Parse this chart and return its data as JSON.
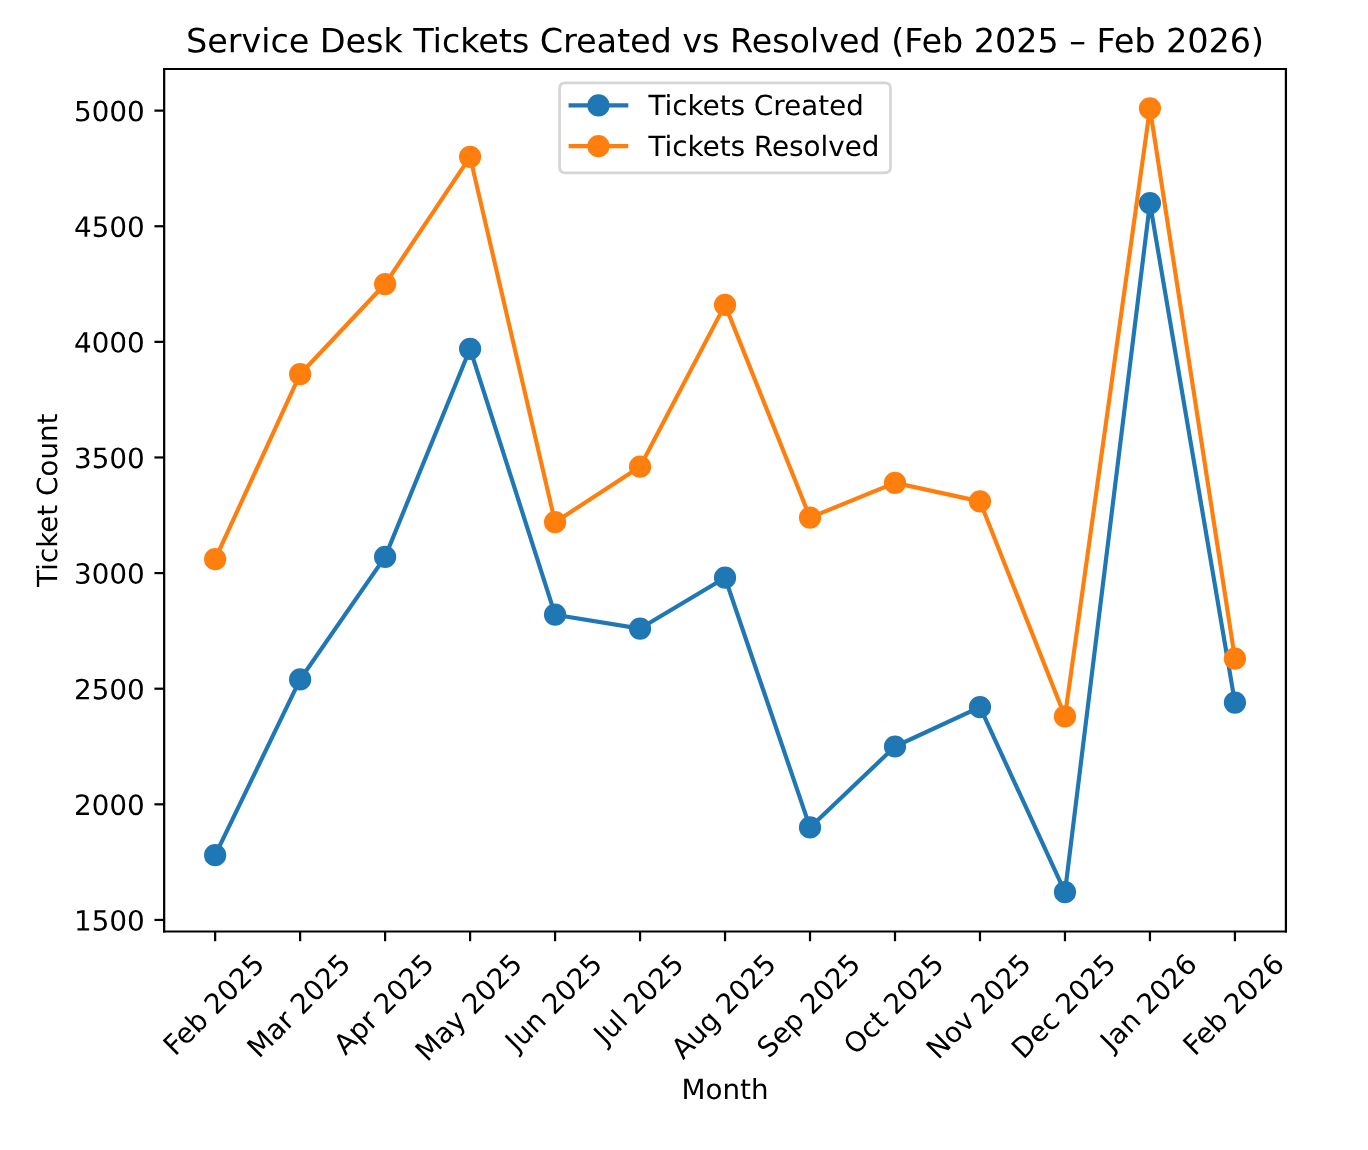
{
  "chart_data": {
    "type": "line",
    "title": "Service Desk Tickets Created vs Resolved (Feb 2025 – Feb 2026)",
    "xlabel": "Month",
    "ylabel": "Ticket Count",
    "categories": [
      "Feb 2025",
      "Mar 2025",
      "Apr 2025",
      "May 2025",
      "Jun 2025",
      "Jul 2025",
      "Aug 2025",
      "Sep 2025",
      "Oct 2025",
      "Nov 2025",
      "Dec 2025",
      "Jan 2026",
      "Feb 2026"
    ],
    "series": [
      {
        "name": "Tickets Created",
        "color": "#1f77b4",
        "values": [
          1780,
          2540,
          3070,
          3970,
          2820,
          2760,
          2980,
          1900,
          2250,
          2420,
          1620,
          4600,
          2440
        ]
      },
      {
        "name": "Tickets Resolved",
        "color": "#ff7f0e",
        "values": [
          3060,
          3860,
          4250,
          4800,
          3220,
          3460,
          4160,
          3240,
          3390,
          3310,
          2380,
          5010,
          2630
        ]
      }
    ],
    "ylim": [
      1450,
      5180
    ],
    "yticks": [
      1500,
      2000,
      2500,
      3000,
      3500,
      4000,
      4500,
      5000
    ],
    "marker": "circle",
    "line_style": "solid",
    "legend": "top",
    "grid": false
  }
}
